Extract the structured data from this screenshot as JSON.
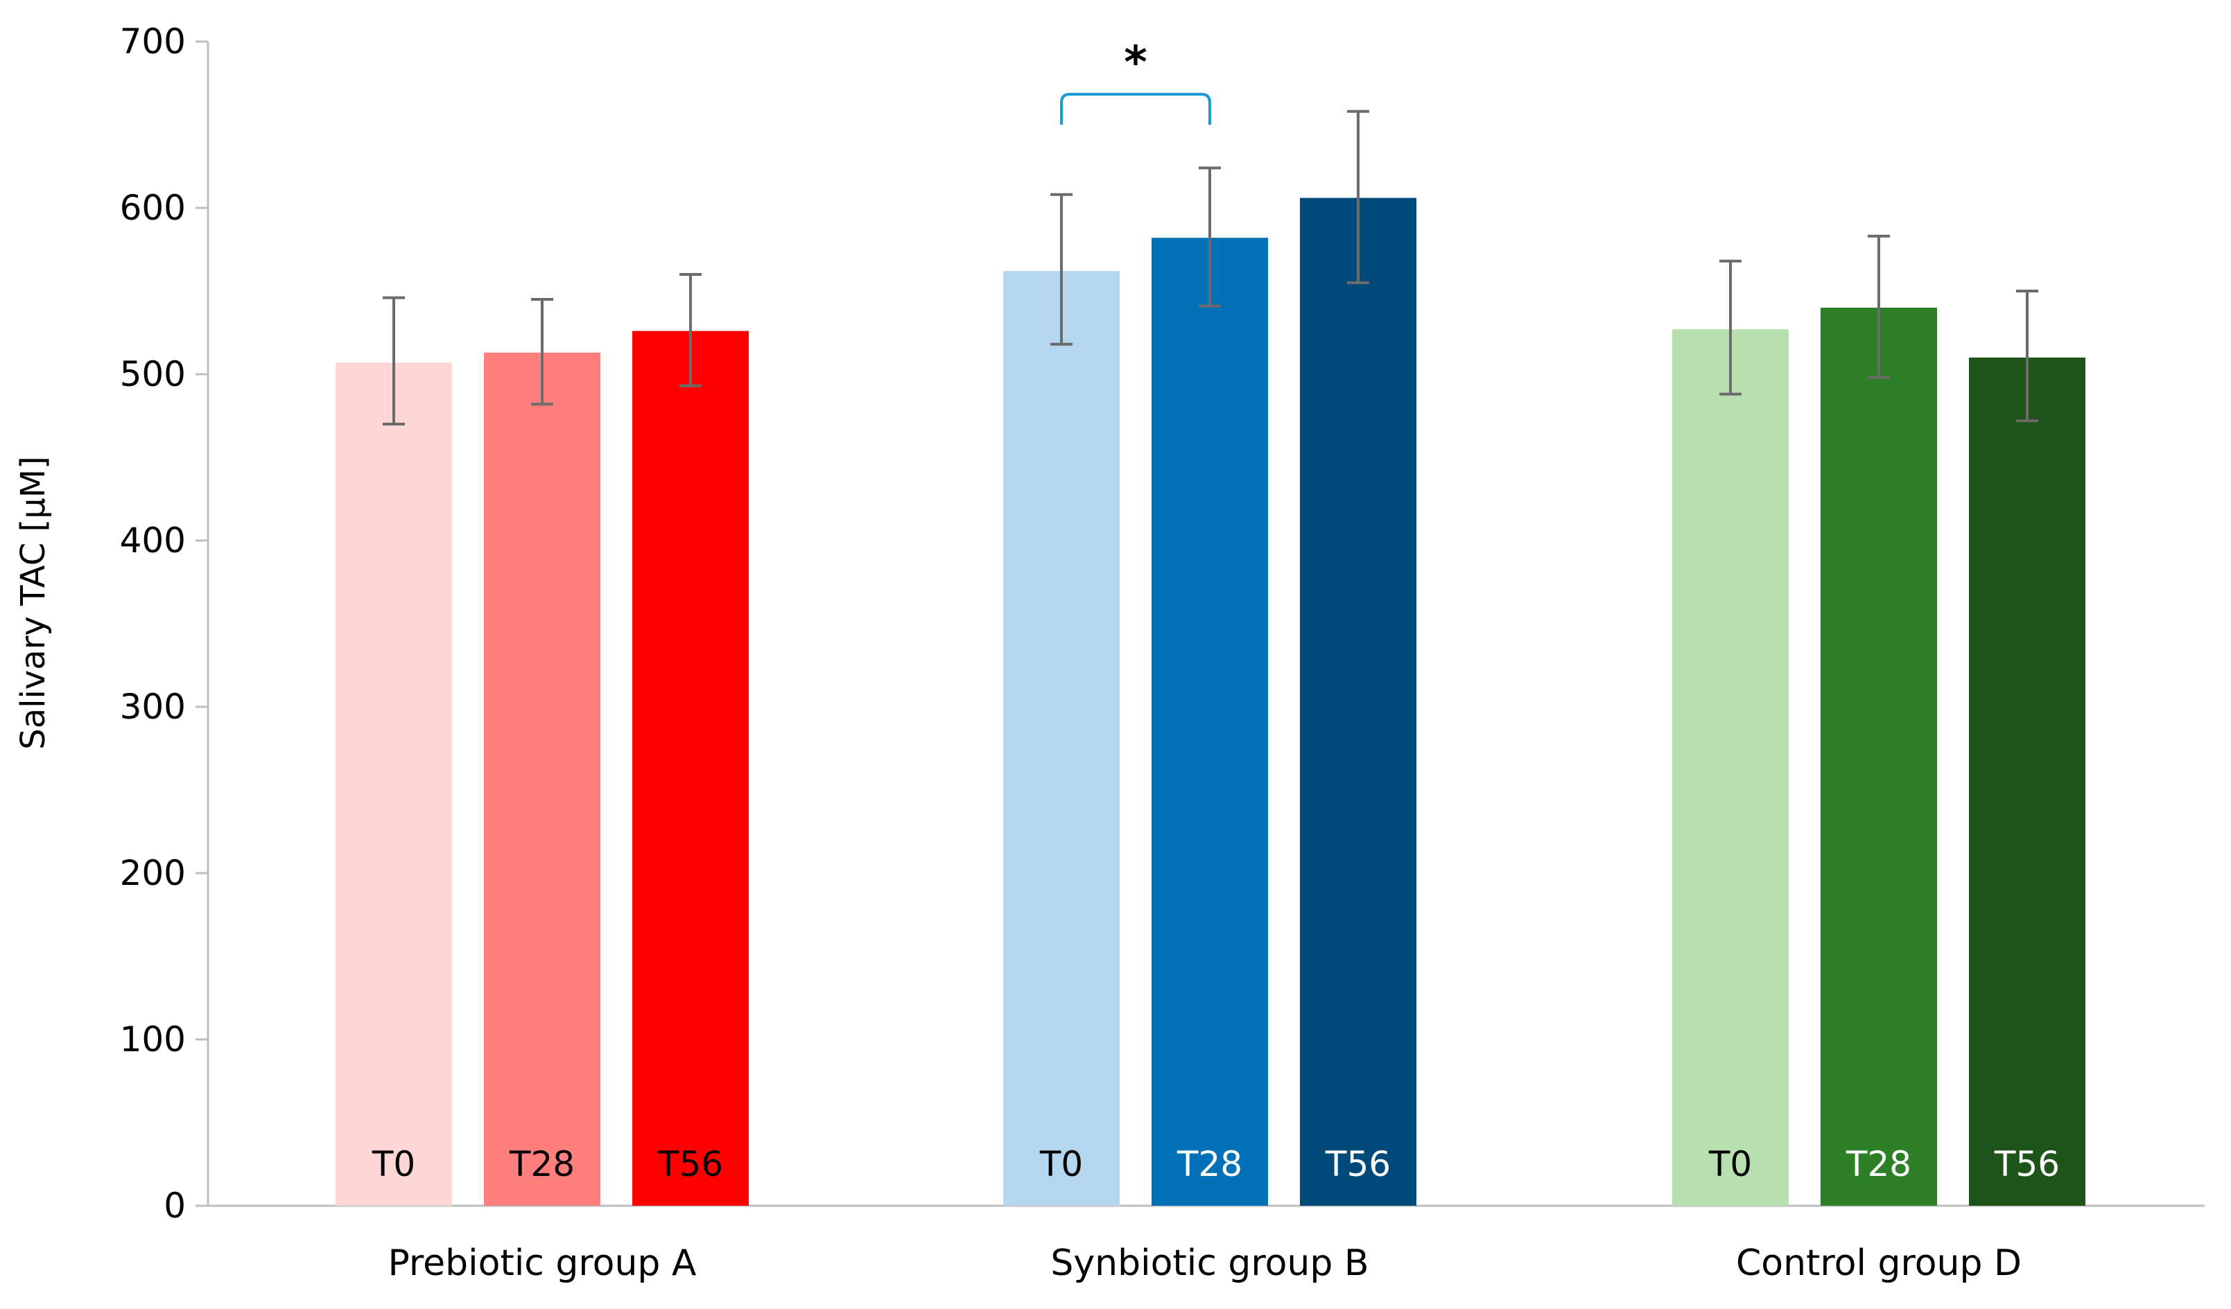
{
  "chart_data": {
    "type": "bar",
    "title": "",
    "xlabel": "",
    "ylabel": "Salivary TAC [µM]",
    "ylim": [
      0,
      700
    ],
    "yticks": [
      0,
      100,
      200,
      300,
      400,
      500,
      600,
      700
    ],
    "grid": false,
    "legend": "none",
    "categories": [
      "Prebiotic group A",
      "Synbiotic group B",
      "Control group D"
    ],
    "groups": [
      {
        "name": "Prebiotic group A",
        "bars": [
          {
            "label": "T0",
            "value": 507,
            "err_low": 470,
            "err_high": 546,
            "color": "#FFD6D6",
            "label_color": "#000000"
          },
          {
            "label": "T28",
            "value": 513,
            "err_low": 482,
            "err_high": 545,
            "color": "#FF7F7F",
            "label_color": "#000000"
          },
          {
            "label": "T56",
            "value": 526,
            "err_low": 493,
            "err_high": 560,
            "color": "#FF0000",
            "label_color": "#000000"
          }
        ]
      },
      {
        "name": "Synbiotic group B",
        "bars": [
          {
            "label": "T0",
            "value": 562,
            "err_low": 518,
            "err_high": 608,
            "color": "#B4D6EF",
            "label_color": "#000000"
          },
          {
            "label": "T28",
            "value": 582,
            "err_low": 541,
            "err_high": 624,
            "color": "#0070B8",
            "label_color": "#FFFFFF"
          },
          {
            "label": "T56",
            "value": 606,
            "err_low": 555,
            "err_high": 658,
            "color": "#004A7A",
            "label_color": "#FFFFFF"
          }
        ]
      },
      {
        "name": "Control group D",
        "bars": [
          {
            "label": "T0",
            "value": 527,
            "err_low": 488,
            "err_high": 568,
            "color": "#B8DFB0",
            "label_color": "#000000"
          },
          {
            "label": "T28",
            "value": 540,
            "err_low": 498,
            "err_high": 583,
            "color": "#2E8028",
            "label_color": "#FFFFFF"
          },
          {
            "label": "T56",
            "value": 510,
            "err_low": 472,
            "err_high": 550,
            "color": "#1E531A",
            "label_color": "#FFFFFF"
          }
        ]
      }
    ],
    "annotations": [
      {
        "type": "significance",
        "text": "*",
        "group": 1,
        "from_bar": 0,
        "to_bar": 1,
        "color": "#1A9AD6"
      }
    ]
  }
}
